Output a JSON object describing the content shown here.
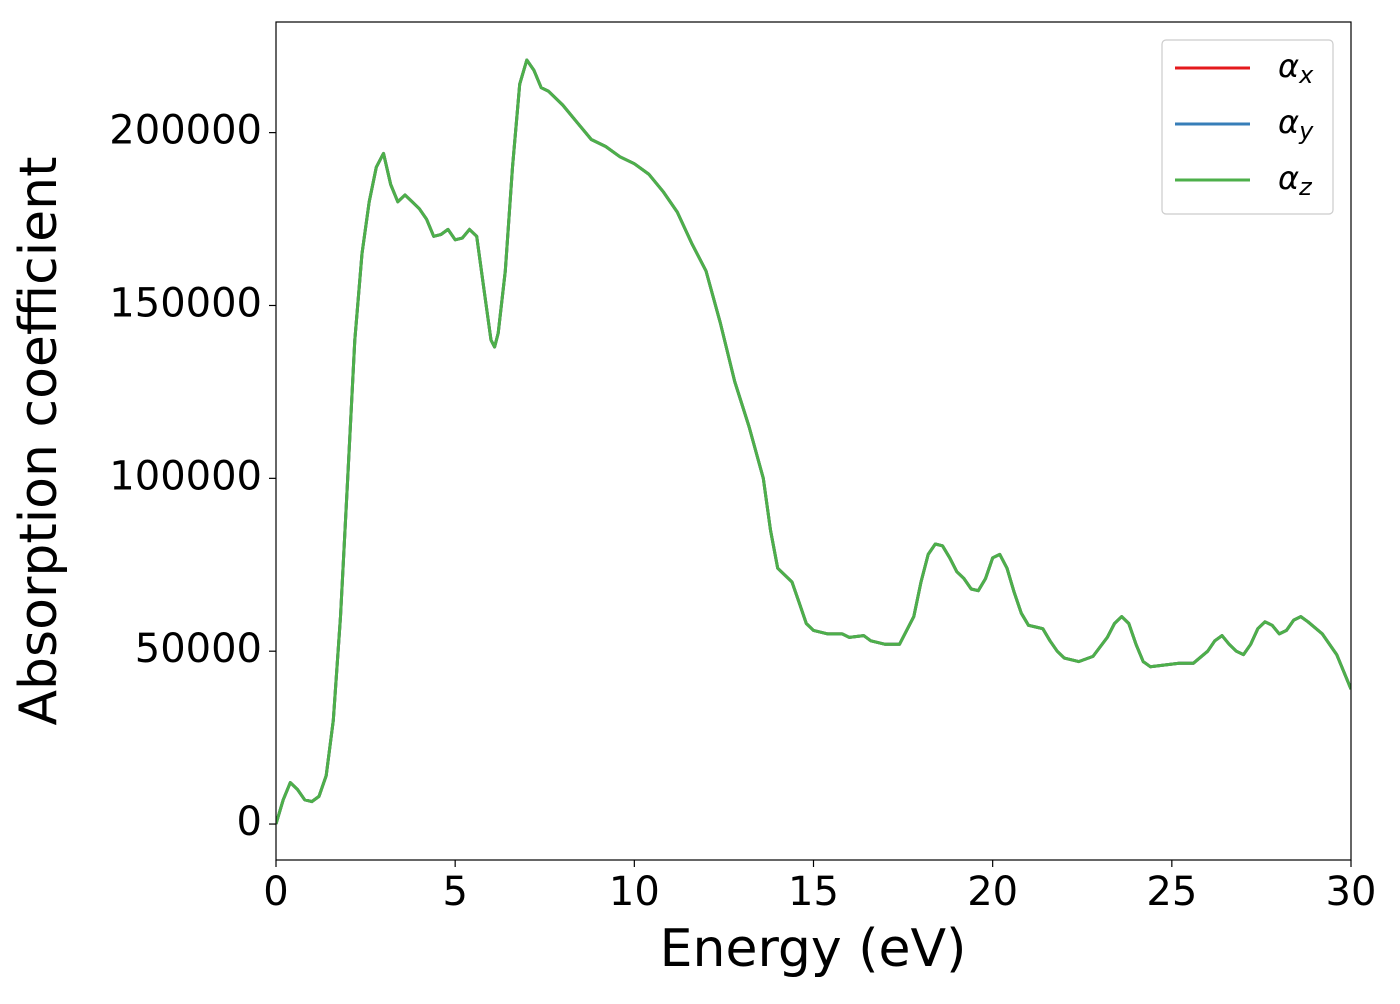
{
  "chart_data": {
    "type": "line",
    "xlabel": "Energy (eV)",
    "ylabel": "Absorption coefficient",
    "x": [
      0,
      0.2,
      0.4,
      0.6,
      0.8,
      1.0,
      1.2,
      1.4,
      1.6,
      1.8,
      2.0,
      2.2,
      2.4,
      2.6,
      2.8,
      3.0,
      3.2,
      3.4,
      3.6,
      3.8,
      4.0,
      4.2,
      4.4,
      4.6,
      4.8,
      5.0,
      5.2,
      5.4,
      5.6,
      5.8,
      6.0,
      6.1,
      6.2,
      6.4,
      6.6,
      6.8,
      7.0,
      7.2,
      7.4,
      7.6,
      8.0,
      8.4,
      8.8,
      9.2,
      9.6,
      10.0,
      10.4,
      10.8,
      11.2,
      11.6,
      12.0,
      12.4,
      12.8,
      13.2,
      13.6,
      13.8,
      14.0,
      14.2,
      14.4,
      14.6,
      14.8,
      15.0,
      15.4,
      15.8,
      16.0,
      16.4,
      16.6,
      17.0,
      17.4,
      17.8,
      18.0,
      18.2,
      18.4,
      18.6,
      18.8,
      19.0,
      19.2,
      19.4,
      19.6,
      19.8,
      20.0,
      20.2,
      20.4,
      20.6,
      20.8,
      21.0,
      21.2,
      21.4,
      21.6,
      21.8,
      22.0,
      22.4,
      22.8,
      23.2,
      23.4,
      23.6,
      23.8,
      24.0,
      24.2,
      24.4,
      24.8,
      25.2,
      25.6,
      26.0,
      26.2,
      26.4,
      26.6,
      26.8,
      27.0,
      27.2,
      27.4,
      27.6,
      27.8,
      28.0,
      28.2,
      28.4,
      28.6,
      28.8,
      29.2,
      29.6,
      30.0
    ],
    "series": [
      {
        "name": "αx",
        "color": "#e41a1c",
        "values": [
          0,
          7000,
          12000,
          10000,
          7000,
          6500,
          8000,
          14000,
          30000,
          60000,
          100000,
          140000,
          165000,
          180000,
          190000,
          194000,
          185000,
          180000,
          182000,
          180000,
          178000,
          175000,
          170000,
          170500,
          172000,
          169000,
          169500,
          172000,
          170000,
          155000,
          140000,
          138000,
          142000,
          160000,
          190000,
          214000,
          221000,
          218000,
          213000,
          212000,
          208000,
          203000,
          198000,
          196000,
          193000,
          191000,
          188000,
          183000,
          177000,
          168000,
          160000,
          145000,
          128000,
          115000,
          100000,
          85000,
          74000,
          72000,
          70000,
          64000,
          58000,
          56000,
          55000,
          55000,
          54000,
          54500,
          53000,
          52000,
          52000,
          60000,
          70000,
          78000,
          81000,
          80500,
          77000,
          73000,
          71000,
          68000,
          67500,
          71000,
          77000,
          78000,
          74000,
          67000,
          61000,
          57500,
          57000,
          56500,
          53000,
          50000,
          48000,
          47000,
          48500,
          54000,
          58000,
          60000,
          58000,
          52000,
          47000,
          45500,
          46000,
          46500,
          46500,
          50000,
          53000,
          54500,
          52000,
          50000,
          49000,
          52000,
          56500,
          58500,
          57500,
          55000,
          56000,
          59000,
          60000,
          58500,
          55000,
          49000,
          39000
        ]
      },
      {
        "name": "αy",
        "color": "#377eb8",
        "values": [
          0,
          7000,
          12000,
          10000,
          7000,
          6500,
          8000,
          14000,
          30000,
          60000,
          100000,
          140000,
          165000,
          180000,
          190000,
          194000,
          185000,
          180000,
          182000,
          180000,
          178000,
          175000,
          170000,
          170500,
          172000,
          169000,
          169500,
          172000,
          170000,
          155000,
          140000,
          138000,
          142000,
          160000,
          190000,
          214000,
          221000,
          218000,
          213000,
          212000,
          208000,
          203000,
          198000,
          196000,
          193000,
          191000,
          188000,
          183000,
          177000,
          168000,
          160000,
          145000,
          128000,
          115000,
          100000,
          85000,
          74000,
          72000,
          70000,
          64000,
          58000,
          56000,
          55000,
          55000,
          54000,
          54500,
          53000,
          52000,
          52000,
          60000,
          70000,
          78000,
          81000,
          80500,
          77000,
          73000,
          71000,
          68000,
          67500,
          71000,
          77000,
          78000,
          74000,
          67000,
          61000,
          57500,
          57000,
          56500,
          53000,
          50000,
          48000,
          47000,
          48500,
          54000,
          58000,
          60000,
          58000,
          52000,
          47000,
          45500,
          46000,
          46500,
          46500,
          50000,
          53000,
          54500,
          52000,
          50000,
          49000,
          52000,
          56500,
          58500,
          57500,
          55000,
          56000,
          59000,
          60000,
          58500,
          55000,
          49000,
          39000
        ]
      },
      {
        "name": "αz",
        "color": "#4daf4a",
        "values": [
          0,
          7000,
          12000,
          10000,
          7000,
          6500,
          8000,
          14000,
          30000,
          60000,
          100000,
          140000,
          165000,
          180000,
          190000,
          194000,
          185000,
          180000,
          182000,
          180000,
          178000,
          175000,
          170000,
          170500,
          172000,
          169000,
          169500,
          172000,
          170000,
          155000,
          140000,
          138000,
          142000,
          160000,
          190000,
          214000,
          221000,
          218000,
          213000,
          212000,
          208000,
          203000,
          198000,
          196000,
          193000,
          191000,
          188000,
          183000,
          177000,
          168000,
          160000,
          145000,
          128000,
          115000,
          100000,
          85000,
          74000,
          72000,
          70000,
          64000,
          58000,
          56000,
          55000,
          55000,
          54000,
          54500,
          53000,
          52000,
          52000,
          60000,
          70000,
          78000,
          81000,
          80500,
          77000,
          73000,
          71000,
          68000,
          67500,
          71000,
          77000,
          78000,
          74000,
          67000,
          61000,
          57500,
          57000,
          56500,
          53000,
          50000,
          48000,
          47000,
          48500,
          54000,
          58000,
          60000,
          58000,
          52000,
          47000,
          45500,
          46000,
          46500,
          46500,
          50000,
          53000,
          54500,
          52000,
          50000,
          49000,
          52000,
          56500,
          58500,
          57500,
          55000,
          56000,
          59000,
          60000,
          58500,
          55000,
          49000,
          39000
        ]
      }
    ],
    "xlim": [
      0,
      30
    ],
    "xticks": [
      0,
      5,
      10,
      15,
      20,
      25,
      30
    ],
    "ylim": [
      -10400,
      232000
    ],
    "yticks": [
      0,
      50000,
      100000,
      150000,
      200000
    ],
    "legend": "upper right",
    "grid": false
  }
}
